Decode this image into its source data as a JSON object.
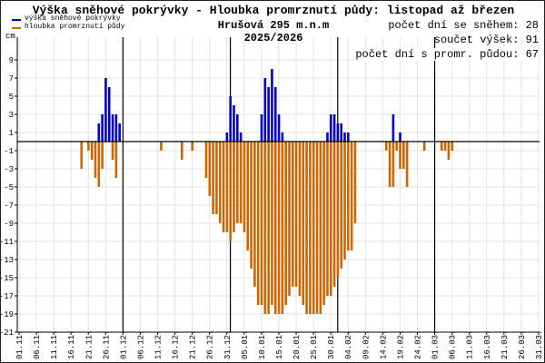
{
  "title": "Výška sněhové pokrývky - Hloubka promrznutí půdy: listopad až březen",
  "station": "Hrušová 295 m.n.m",
  "season": "2025/2026",
  "stats": [
    "počet dní se sněhem: 28",
    "součet výšek: 91",
    "počet dní s promr. půdou: 67"
  ],
  "legend": [
    {
      "label": "výška sněhové pokrývky",
      "color": "#0000cc"
    },
    {
      "label": "hloubka promrznutí půdy",
      "color": "#cc6600"
    }
  ],
  "chart_data": {
    "type": "bar",
    "ylabel": "cm",
    "ylim": [
      -21,
      11.5
    ],
    "yticks": [
      9,
      7,
      5,
      3,
      1,
      -1,
      -3,
      -5,
      -7,
      -9,
      -11,
      -13,
      -15,
      -17,
      -19,
      -21
    ],
    "x_start": "01.11",
    "days": 151,
    "month_boundaries": [
      "01.12",
      "01.01",
      "01.02",
      "01.03"
    ],
    "xticks": [
      "01.11.",
      "06.11.",
      "11.11.",
      "16.11.",
      "21.11.",
      "26.11.",
      "01.12.",
      "06.12.",
      "11.12.",
      "16.12.",
      "21.12.",
      "26.12.",
      "31.12.",
      "05.01.",
      "10.01.",
      "15.01.",
      "20.01.",
      "25.01.",
      "30.01.",
      "04.02.",
      "09.02.",
      "14.02.",
      "19.02.",
      "24.02.",
      "01.03.",
      "06.03.",
      "11.03.",
      "16.03.",
      "21.03.",
      "26.03.",
      "31.03."
    ],
    "grid": true,
    "legend_position": "top-left",
    "series": [
      {
        "name": "výška sněhové pokrývky",
        "color": "#0000cc",
        "values": [
          [
            "24.11",
            2
          ],
          [
            "25.11",
            3
          ],
          [
            "26.11",
            7
          ],
          [
            "27.11",
            6
          ],
          [
            "28.11",
            3
          ],
          [
            "29.11",
            3
          ],
          [
            "30.11",
            2
          ],
          [
            "31.12",
            1
          ],
          [
            "01.01",
            5
          ],
          [
            "02.01",
            4
          ],
          [
            "03.01",
            3
          ],
          [
            "04.01",
            1
          ],
          [
            "10.01",
            3
          ],
          [
            "11.01",
            7
          ],
          [
            "12.01",
            6
          ],
          [
            "13.01",
            8
          ],
          [
            "14.01",
            6
          ],
          [
            "15.01",
            3
          ],
          [
            "16.01",
            1
          ],
          [
            "29.01",
            1
          ],
          [
            "30.01",
            3
          ],
          [
            "31.01",
            3
          ],
          [
            "01.02",
            2
          ],
          [
            "02.02",
            2
          ],
          [
            "03.02",
            1
          ],
          [
            "04.02",
            1
          ],
          [
            "17.02",
            3
          ],
          [
            "19.02",
            1
          ]
        ]
      },
      {
        "name": "hloubka promrznutí půdy",
        "color": "#cc6600",
        "values": [
          [
            "19.11",
            -3
          ],
          [
            "21.11",
            -1
          ],
          [
            "22.11",
            -2
          ],
          [
            "23.11",
            -4
          ],
          [
            "24.11",
            -5
          ],
          [
            "25.11",
            -3
          ],
          [
            "28.11",
            -2
          ],
          [
            "29.11",
            -4
          ],
          [
            "12.12",
            -1
          ],
          [
            "18.12",
            -2
          ],
          [
            "21.12",
            -1
          ],
          [
            "25.12",
            -4
          ],
          [
            "26.12",
            -6
          ],
          [
            "27.12",
            -8
          ],
          [
            "28.12",
            -8
          ],
          [
            "29.12",
            -9
          ],
          [
            "30.12",
            -10
          ],
          [
            "31.12",
            -10
          ],
          [
            "01.01",
            -11
          ],
          [
            "02.01",
            -10
          ],
          [
            "03.01",
            -9
          ],
          [
            "04.01",
            -9
          ],
          [
            "05.01",
            -10
          ],
          [
            "06.01",
            -12
          ],
          [
            "07.01",
            -14
          ],
          [
            "08.01",
            -16
          ],
          [
            "09.01",
            -18
          ],
          [
            "10.01",
            -18
          ],
          [
            "11.01",
            -19
          ],
          [
            "12.01",
            -19
          ],
          [
            "13.01",
            -18
          ],
          [
            "14.01",
            -19
          ],
          [
            "15.01",
            -19
          ],
          [
            "16.01",
            -19
          ],
          [
            "17.01",
            -18
          ],
          [
            "18.01",
            -17
          ],
          [
            "19.01",
            -16
          ],
          [
            "20.01",
            -16
          ],
          [
            "21.01",
            -17
          ],
          [
            "22.01",
            -18
          ],
          [
            "23.01",
            -19
          ],
          [
            "24.01",
            -19
          ],
          [
            "25.01",
            -19
          ],
          [
            "26.01",
            -19
          ],
          [
            "27.01",
            -19
          ],
          [
            "28.01",
            -18
          ],
          [
            "29.01",
            -17
          ],
          [
            "30.01",
            -17
          ],
          [
            "31.01",
            -16
          ],
          [
            "01.02",
            -15
          ],
          [
            "02.02",
            -14
          ],
          [
            "03.02",
            -13
          ],
          [
            "04.02",
            -12
          ],
          [
            "05.02",
            -12
          ],
          [
            "06.02",
            -9
          ],
          [
            "15.02",
            -1
          ],
          [
            "16.02",
            -5
          ],
          [
            "17.02",
            -5
          ],
          [
            "18.02",
            -1
          ],
          [
            "19.02",
            -3
          ],
          [
            "20.02",
            -3
          ],
          [
            "21.02",
            -5
          ],
          [
            "26.02",
            -1
          ],
          [
            "03.03",
            -1
          ],
          [
            "04.03",
            -1
          ],
          [
            "05.03",
            -2
          ],
          [
            "06.03",
            -1
          ]
        ]
      }
    ]
  }
}
